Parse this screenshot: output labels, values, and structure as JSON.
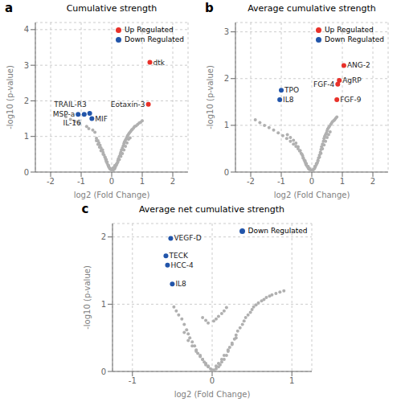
{
  "chart_data": [
    {
      "type": "scatter",
      "panel_label": "a",
      "title": "Cumulative strength",
      "x_label": "log2 (Fold Change)",
      "y_label": "-log10 (p-value)",
      "xlim": [
        -2.5,
        2.5
      ],
      "ylim": [
        0,
        4.2
      ],
      "xticks": [
        -2,
        -1,
        0,
        1,
        2
      ],
      "yticks": [
        0,
        1,
        2,
        3,
        4
      ],
      "grid": true,
      "legend": "upper right",
      "series": [
        {
          "color": "#b0b0b0",
          "points": [
            [
              -1.5,
              1.55
            ],
            [
              -1.35,
              1.48
            ],
            [
              -1.2,
              1.42
            ],
            [
              -1.05,
              1.38
            ],
            [
              -0.82,
              1.28
            ],
            [
              -0.75,
              1.22
            ],
            [
              -0.62,
              1.18
            ],
            [
              -0.55,
              1.12
            ],
            [
              -0.5,
              0.95
            ],
            [
              -0.45,
              0.88
            ],
            [
              -0.42,
              0.82
            ],
            [
              -0.38,
              0.75
            ],
            [
              -0.35,
              0.68
            ],
            [
              -0.3,
              0.62
            ],
            [
              -0.28,
              0.55
            ],
            [
              -0.25,
              0.48
            ],
            [
              -0.22,
              0.42
            ],
            [
              -0.2,
              0.36
            ],
            [
              -0.18,
              0.3
            ],
            [
              -0.15,
              0.25
            ],
            [
              -0.12,
              0.2
            ],
            [
              -0.1,
              0.15
            ],
            [
              -0.08,
              0.12
            ],
            [
              -0.05,
              0.08
            ],
            [
              0.0,
              0.05
            ],
            [
              0.02,
              0.05
            ],
            [
              0.05,
              0.06
            ],
            [
              0.08,
              0.08
            ],
            [
              0.1,
              0.1
            ],
            [
              0.12,
              0.14
            ],
            [
              0.15,
              0.19
            ],
            [
              0.18,
              0.25
            ],
            [
              0.2,
              0.32
            ],
            [
              0.22,
              0.38
            ],
            [
              0.25,
              0.44
            ],
            [
              0.28,
              0.5
            ],
            [
              0.3,
              0.56
            ],
            [
              0.32,
              0.62
            ],
            [
              0.35,
              0.68
            ],
            [
              0.38,
              0.74
            ],
            [
              0.4,
              0.8
            ],
            [
              0.42,
              0.85
            ],
            [
              0.45,
              0.9
            ],
            [
              0.48,
              0.94
            ],
            [
              0.5,
              0.98
            ],
            [
              0.52,
              1.02
            ],
            [
              0.55,
              1.06
            ],
            [
              0.58,
              1.1
            ],
            [
              0.62,
              1.14
            ],
            [
              0.65,
              1.18
            ],
            [
              0.68,
              1.2
            ],
            [
              0.72,
              1.24
            ],
            [
              0.75,
              1.28
            ],
            [
              0.8,
              1.3
            ],
            [
              0.85,
              1.34
            ],
            [
              0.9,
              1.38
            ],
            [
              0.95,
              1.4
            ],
            [
              1.0,
              1.44
            ],
            [
              -0.05,
              0.1
            ],
            [
              0.05,
              0.12
            ],
            [
              0.1,
              0.18
            ],
            [
              -0.1,
              0.18
            ],
            [
              0.15,
              0.22
            ],
            [
              -0.15,
              0.28
            ],
            [
              0.2,
              0.28
            ],
            [
              -0.18,
              0.35
            ],
            [
              0.25,
              0.35
            ],
            [
              -0.22,
              0.42
            ],
            [
              0.3,
              0.44
            ],
            [
              -0.28,
              0.5
            ],
            [
              0.35,
              0.52
            ],
            [
              0.4,
              0.62
            ],
            [
              -0.35,
              0.6
            ],
            [
              -0.4,
              0.7
            ],
            [
              0.45,
              0.72
            ],
            [
              -0.45,
              0.78
            ],
            [
              0.5,
              0.82
            ],
            [
              -0.5,
              0.88
            ],
            [
              0.55,
              0.92
            ],
            [
              0.6,
              0.96
            ]
          ]
        },
        {
          "name": "Up Regulated",
          "color": "#e8312a",
          "points": [
            [
              1.25,
              3.08
            ],
            [
              1.2,
              1.9
            ]
          ],
          "labels": [
            "dtk",
            "Eotaxin-3"
          ]
        },
        {
          "name": "Down Regulated",
          "color": "#2255aa",
          "points": [
            [
              -0.72,
              1.65
            ],
            [
              -0.65,
              1.5
            ],
            [
              -0.9,
              1.62
            ],
            [
              -1.1,
              1.62
            ]
          ],
          "labels": [
            "TRAIL-R3",
            "MIF",
            "IL-16",
            "MSP-a"
          ]
        }
      ]
    },
    {
      "type": "scatter",
      "panel_label": "b",
      "title": "Average cumulative strength",
      "x_label": "log2 (Fold Change)",
      "y_label": "-log10 (p-value)",
      "xlim": [
        -2.5,
        2.5
      ],
      "ylim": [
        0,
        3.2
      ],
      "xticks": [
        -2,
        -1,
        0,
        1,
        2
      ],
      "yticks": [
        0,
        1,
        2,
        3
      ],
      "grid": true,
      "legend": "upper right",
      "series": [
        {
          "color": "#b0b0b0",
          "points": [
            [
              -1.85,
              1.12
            ],
            [
              -1.7,
              1.06
            ],
            [
              -1.55,
              1.0
            ],
            [
              -1.4,
              0.95
            ],
            [
              -1.25,
              0.9
            ],
            [
              -1.1,
              0.84
            ],
            [
              -0.95,
              0.78
            ],
            [
              -0.82,
              0.72
            ],
            [
              -0.7,
              0.66
            ],
            [
              -0.6,
              0.6
            ],
            [
              -0.52,
              0.55
            ],
            [
              -0.45,
              0.5
            ],
            [
              -0.4,
              0.45
            ],
            [
              -0.35,
              0.4
            ],
            [
              -0.3,
              0.35
            ],
            [
              -0.28,
              0.3
            ],
            [
              -0.25,
              0.26
            ],
            [
              -0.22,
              0.22
            ],
            [
              -0.2,
              0.18
            ],
            [
              -0.18,
              0.15
            ],
            [
              -0.15,
              0.12
            ],
            [
              -0.12,
              0.09
            ],
            [
              -0.1,
              0.07
            ],
            [
              -0.08,
              0.06
            ],
            [
              -0.05,
              0.05
            ],
            [
              0.0,
              0.04
            ],
            [
              0.02,
              0.04
            ],
            [
              0.05,
              0.05
            ],
            [
              0.08,
              0.07
            ],
            [
              0.1,
              0.09
            ],
            [
              0.12,
              0.12
            ],
            [
              0.15,
              0.16
            ],
            [
              0.18,
              0.2
            ],
            [
              0.2,
              0.25
            ],
            [
              0.22,
              0.3
            ],
            [
              0.25,
              0.36
            ],
            [
              0.28,
              0.42
            ],
            [
              0.3,
              0.48
            ],
            [
              0.32,
              0.54
            ],
            [
              0.35,
              0.6
            ],
            [
              0.38,
              0.66
            ],
            [
              0.4,
              0.72
            ],
            [
              0.42,
              0.76
            ],
            [
              0.45,
              0.8
            ],
            [
              0.48,
              0.84
            ],
            [
              0.5,
              0.88
            ],
            [
              0.52,
              0.92
            ],
            [
              0.55,
              0.95
            ],
            [
              0.58,
              0.98
            ],
            [
              0.62,
              1.02
            ],
            [
              0.65,
              1.05
            ],
            [
              0.68,
              1.08
            ],
            [
              0.72,
              1.1
            ],
            [
              0.75,
              1.12
            ],
            [
              0.78,
              1.15
            ],
            [
              0.82,
              1.18
            ],
            [
              -0.08,
              0.08
            ],
            [
              -0.12,
              0.12
            ],
            [
              0.1,
              0.12
            ],
            [
              -0.18,
              0.18
            ],
            [
              0.15,
              0.18
            ],
            [
              -0.22,
              0.24
            ],
            [
              0.2,
              0.24
            ],
            [
              -0.28,
              0.3
            ],
            [
              0.25,
              0.32
            ],
            [
              -0.32,
              0.38
            ],
            [
              0.3,
              0.4
            ],
            [
              -0.38,
              0.46
            ],
            [
              0.35,
              0.5
            ],
            [
              -0.45,
              0.54
            ],
            [
              0.4,
              0.58
            ],
            [
              -0.52,
              0.62
            ],
            [
              0.45,
              0.66
            ],
            [
              -0.6,
              0.68
            ],
            [
              0.5,
              0.74
            ],
            [
              -0.7,
              0.74
            ],
            [
              0.55,
              0.8
            ],
            [
              0.6,
              0.86
            ],
            [
              -0.8,
              0.8
            ]
          ]
        },
        {
          "name": "Up Regulated",
          "color": "#e8312a",
          "points": [
            [
              1.05,
              2.28
            ],
            [
              0.9,
              1.96
            ],
            [
              0.85,
              1.88
            ],
            [
              0.82,
              1.55
            ]
          ],
          "labels": [
            "ANG-2",
            "AgRP",
            "FGF-4",
            "FGF-9"
          ]
        },
        {
          "name": "Down Regulated",
          "color": "#2255aa",
          "points": [
            [
              -1.0,
              1.75
            ],
            [
              -1.05,
              1.55
            ]
          ],
          "labels": [
            "TPO",
            "IL8"
          ]
        }
      ]
    },
    {
      "type": "scatter",
      "panel_label": "c",
      "title": "Average net cumulative strength",
      "x_label": "log2 (Fold Change)",
      "y_label": "-log10 (p-value)",
      "xlim": [
        -1.25,
        1.25
      ],
      "ylim": [
        0,
        2.2
      ],
      "xticks": [
        -1,
        0,
        1
      ],
      "yticks": [
        0,
        1,
        2
      ],
      "grid": true,
      "legend": "upper right",
      "series": [
        {
          "color": "#b0b0b0",
          "points": [
            [
              -0.38,
              0.78
            ],
            [
              -0.35,
              0.7
            ],
            [
              -0.32,
              0.62
            ],
            [
              -0.3,
              0.56
            ],
            [
              -0.28,
              0.5
            ],
            [
              -0.25,
              0.44
            ],
            [
              -0.22,
              0.38
            ],
            [
              -0.2,
              0.32
            ],
            [
              -0.18,
              0.27
            ],
            [
              -0.15,
              0.22
            ],
            [
              -0.12,
              0.18
            ],
            [
              -0.1,
              0.14
            ],
            [
              -0.08,
              0.1
            ],
            [
              -0.05,
              0.07
            ],
            [
              -0.02,
              0.04
            ],
            [
              0.0,
              0.02
            ],
            [
              0.02,
              0.02
            ],
            [
              0.05,
              0.04
            ],
            [
              0.08,
              0.07
            ],
            [
              0.1,
              0.1
            ],
            [
              0.12,
              0.14
            ],
            [
              0.15,
              0.18
            ],
            [
              0.18,
              0.24
            ],
            [
              0.2,
              0.3
            ],
            [
              0.22,
              0.36
            ],
            [
              0.25,
              0.42
            ],
            [
              0.28,
              0.48
            ],
            [
              0.3,
              0.54
            ],
            [
              0.32,
              0.6
            ],
            [
              0.35,
              0.65
            ],
            [
              0.38,
              0.7
            ],
            [
              0.4,
              0.75
            ],
            [
              0.42,
              0.8
            ],
            [
              0.45,
              0.84
            ],
            [
              0.48,
              0.88
            ],
            [
              -0.42,
              0.84
            ],
            [
              -0.45,
              0.9
            ],
            [
              -0.48,
              0.96
            ],
            [
              0.5,
              0.92
            ],
            [
              0.52,
              0.96
            ],
            [
              0.55,
              0.99
            ],
            [
              0.58,
              1.02
            ],
            [
              0.62,
              1.05
            ],
            [
              0.65,
              1.07
            ],
            [
              0.68,
              1.1
            ],
            [
              0.72,
              1.12
            ],
            [
              0.75,
              1.14
            ],
            [
              0.8,
              1.16
            ],
            [
              0.85,
              1.18
            ],
            [
              0.9,
              1.2
            ],
            [
              -0.05,
              0.08
            ],
            [
              0.05,
              0.08
            ],
            [
              -0.08,
              0.12
            ],
            [
              0.08,
              0.12
            ],
            [
              -0.12,
              0.18
            ],
            [
              0.12,
              0.18
            ],
            [
              -0.15,
              0.24
            ],
            [
              0.15,
              0.24
            ],
            [
              -0.2,
              0.3
            ],
            [
              0.2,
              0.32
            ],
            [
              -0.25,
              0.38
            ],
            [
              0.25,
              0.4
            ],
            [
              -0.3,
              0.46
            ],
            [
              0.3,
              0.5
            ],
            [
              -0.35,
              0.58
            ],
            [
              0.02,
              0.75
            ],
            [
              0.05,
              0.78
            ],
            [
              0.08,
              0.82
            ],
            [
              0.12,
              0.86
            ],
            [
              0.15,
              0.9
            ],
            [
              0.18,
              0.95
            ],
            [
              -0.05,
              0.72
            ],
            [
              -0.08,
              0.76
            ],
            [
              -0.12,
              0.8
            ]
          ]
        },
        {
          "name": "Down Regulated",
          "color": "#2255aa",
          "points": [
            [
              -0.52,
              1.98
            ],
            [
              -0.58,
              1.72
            ],
            [
              -0.56,
              1.58
            ],
            [
              -0.5,
              1.3
            ]
          ],
          "labels": [
            "VEGF-D",
            "TECK",
            "HCC-4",
            "IL8"
          ]
        }
      ]
    }
  ]
}
